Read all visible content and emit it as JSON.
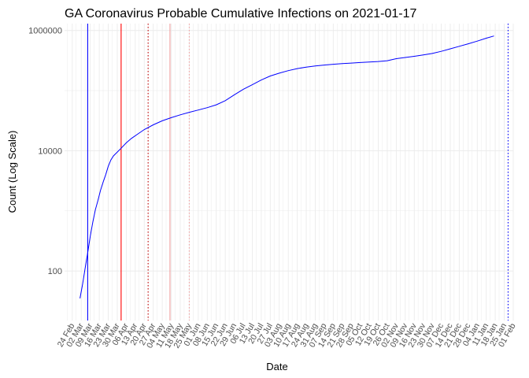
{
  "chart_data": {
    "type": "line",
    "title": "GA Coronavirus Probable Cumulative Infections on 2021-01-17",
    "xlabel": "Date",
    "ylabel": "Count (Log Scale)",
    "y_scale": "log10",
    "xlim": [
      "2020-02-18",
      "2021-02-01"
    ],
    "ylim": [
      15,
      1300000
    ],
    "y_ticks": [
      {
        "value": 100,
        "label": "100"
      },
      {
        "value": 10000,
        "label": "10000"
      },
      {
        "value": 1000000,
        "label": "1000000"
      }
    ],
    "x_ticks": [
      {
        "date": "2020-02-24",
        "label": "24 Feb"
      },
      {
        "date": "2020-03-02",
        "label": "02 Mar"
      },
      {
        "date": "2020-03-09",
        "label": "09 Mar"
      },
      {
        "date": "2020-03-16",
        "label": "16 Mar"
      },
      {
        "date": "2020-03-23",
        "label": "23 Mar"
      },
      {
        "date": "2020-03-30",
        "label": "30 Mar"
      },
      {
        "date": "2020-04-06",
        "label": "06 Apr"
      },
      {
        "date": "2020-04-13",
        "label": "13 Apr"
      },
      {
        "date": "2020-04-20",
        "label": "20 Apr"
      },
      {
        "date": "2020-04-27",
        "label": "27 Apr"
      },
      {
        "date": "2020-05-04",
        "label": "04 May"
      },
      {
        "date": "2020-05-11",
        "label": "11 May"
      },
      {
        "date": "2020-05-18",
        "label": "18 May"
      },
      {
        "date": "2020-05-25",
        "label": "25 May"
      },
      {
        "date": "2020-06-01",
        "label": "01 Jun"
      },
      {
        "date": "2020-06-08",
        "label": "08 Jun"
      },
      {
        "date": "2020-06-15",
        "label": "15 Jun"
      },
      {
        "date": "2020-06-22",
        "label": "22 Jun"
      },
      {
        "date": "2020-06-29",
        "label": "29 Jun"
      },
      {
        "date": "2020-07-06",
        "label": "06 Jul"
      },
      {
        "date": "2020-07-13",
        "label": "13 Jul"
      },
      {
        "date": "2020-07-20",
        "label": "20 Jul"
      },
      {
        "date": "2020-07-27",
        "label": "27 Jul"
      },
      {
        "date": "2020-08-03",
        "label": "03 Aug"
      },
      {
        "date": "2020-08-10",
        "label": "10 Aug"
      },
      {
        "date": "2020-08-17",
        "label": "17 Aug"
      },
      {
        "date": "2020-08-24",
        "label": "24 Aug"
      },
      {
        "date": "2020-08-31",
        "label": "31 Aug"
      },
      {
        "date": "2020-09-07",
        "label": "07 Sep"
      },
      {
        "date": "2020-09-14",
        "label": "14 Sep"
      },
      {
        "date": "2020-09-21",
        "label": "21 Sep"
      },
      {
        "date": "2020-09-28",
        "label": "28 Sep"
      },
      {
        "date": "2020-10-05",
        "label": "05 Oct"
      },
      {
        "date": "2020-10-12",
        "label": "12 Oct"
      },
      {
        "date": "2020-10-19",
        "label": "19 Oct"
      },
      {
        "date": "2020-10-26",
        "label": "26 Oct"
      },
      {
        "date": "2020-11-02",
        "label": "02 Nov"
      },
      {
        "date": "2020-11-09",
        "label": "09 Nov"
      },
      {
        "date": "2020-11-16",
        "label": "16 Nov"
      },
      {
        "date": "2020-11-23",
        "label": "23 Nov"
      },
      {
        "date": "2020-11-30",
        "label": "30 Nov"
      },
      {
        "date": "2020-12-07",
        "label": "07 Dec"
      },
      {
        "date": "2020-12-14",
        "label": "14 Dec"
      },
      {
        "date": "2020-12-21",
        "label": "21 Dec"
      },
      {
        "date": "2020-12-28",
        "label": "28 Dec"
      },
      {
        "date": "2021-01-04",
        "label": "04 Jan"
      },
      {
        "date": "2021-01-11",
        "label": "11 Jan"
      },
      {
        "date": "2021-01-18",
        "label": "18 Jan"
      },
      {
        "date": "2021-01-25",
        "label": "25 Jan"
      },
      {
        "date": "2021-02-01",
        "label": "01 Feb"
      }
    ],
    "series": [
      {
        "color": "#0000ff",
        "points": [
          [
            "2020-03-01",
            35
          ],
          [
            "2020-03-03",
            60
          ],
          [
            "2020-03-05",
            110
          ],
          [
            "2020-03-07",
            200
          ],
          [
            "2020-03-09",
            380
          ],
          [
            "2020-03-11",
            650
          ],
          [
            "2020-03-13",
            1050
          ],
          [
            "2020-03-15",
            1500
          ],
          [
            "2020-03-17",
            2200
          ],
          [
            "2020-03-19",
            3000
          ],
          [
            "2020-03-21",
            4000
          ],
          [
            "2020-03-23",
            5500
          ],
          [
            "2020-03-25",
            7000
          ],
          [
            "2020-03-27",
            8200
          ],
          [
            "2020-03-30",
            9500
          ],
          [
            "2020-04-02",
            11000
          ],
          [
            "2020-04-06",
            13500
          ],
          [
            "2020-04-10",
            16000
          ],
          [
            "2020-04-15",
            19000
          ],
          [
            "2020-04-20",
            22500
          ],
          [
            "2020-04-27",
            27000
          ],
          [
            "2020-05-04",
            31500
          ],
          [
            "2020-05-11",
            35500
          ],
          [
            "2020-05-18",
            39500
          ],
          [
            "2020-05-25",
            43500
          ],
          [
            "2020-06-01",
            47500
          ],
          [
            "2020-06-08",
            52000
          ],
          [
            "2020-06-15",
            58000
          ],
          [
            "2020-06-22",
            68000
          ],
          [
            "2020-06-29",
            85000
          ],
          [
            "2020-07-06",
            105000
          ],
          [
            "2020-07-13",
            125000
          ],
          [
            "2020-07-20",
            150000
          ],
          [
            "2020-07-27",
            175000
          ],
          [
            "2020-08-03",
            195000
          ],
          [
            "2020-08-10",
            215000
          ],
          [
            "2020-08-17",
            232000
          ],
          [
            "2020-08-24",
            245000
          ],
          [
            "2020-08-31",
            257000
          ],
          [
            "2020-09-07",
            266000
          ],
          [
            "2020-09-14",
            274000
          ],
          [
            "2020-09-21",
            281000
          ],
          [
            "2020-09-28",
            287000
          ],
          [
            "2020-10-05",
            293000
          ],
          [
            "2020-10-12",
            299000
          ],
          [
            "2020-10-19",
            305000
          ],
          [
            "2020-10-26",
            314000
          ],
          [
            "2020-11-02",
            340000
          ],
          [
            "2020-11-09",
            355000
          ],
          [
            "2020-11-16",
            372000
          ],
          [
            "2020-11-23",
            392000
          ],
          [
            "2020-11-30",
            415000
          ],
          [
            "2020-12-07",
            450000
          ],
          [
            "2020-12-14",
            495000
          ],
          [
            "2020-12-21",
            545000
          ],
          [
            "2020-12-28",
            600000
          ],
          [
            "2021-01-04",
            665000
          ],
          [
            "2021-01-11",
            745000
          ],
          [
            "2021-01-17",
            810000
          ]
        ]
      }
    ],
    "vertical_lines": [
      {
        "date": "2020-03-07",
        "color": "#0000ff",
        "style": "solid"
      },
      {
        "date": "2020-04-02",
        "color": "#ff0000",
        "style": "solid"
      },
      {
        "date": "2020-04-23",
        "color": "#c00000",
        "style": "dotted"
      },
      {
        "date": "2020-05-10",
        "color": "#f0a0a0",
        "style": "solid"
      },
      {
        "date": "2020-05-25",
        "color": "#f0a0a0",
        "style": "dotted"
      },
      {
        "date": "2021-01-28",
        "color": "#0000ff",
        "style": "dotted"
      }
    ],
    "grid": true,
    "legend": "none"
  }
}
